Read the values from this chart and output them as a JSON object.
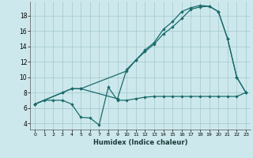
{
  "xlabel": "Humidex (Indice chaleur)",
  "bg_color": "#cde8ec",
  "grid_color": "#a8cdd2",
  "line_color": "#1a6b6b",
  "xlim": [
    -0.5,
    23.5
  ],
  "ylim": [
    3.2,
    19.8
  ],
  "xticks": [
    0,
    1,
    2,
    3,
    4,
    5,
    6,
    7,
    8,
    9,
    10,
    11,
    12,
    13,
    14,
    15,
    16,
    17,
    18,
    19,
    20,
    21,
    22,
    23
  ],
  "yticks": [
    4,
    6,
    8,
    10,
    12,
    14,
    16,
    18
  ],
  "line1_x": [
    0,
    1,
    2,
    3,
    4,
    5,
    6,
    7,
    8,
    9,
    10,
    11,
    12,
    13,
    14,
    15,
    16,
    17,
    18,
    19,
    20,
    21,
    22,
    23
  ],
  "line1_y": [
    6.5,
    7.0,
    7.0,
    7.0,
    6.5,
    4.8,
    4.7,
    3.8,
    8.7,
    7.0,
    7.0,
    7.2,
    7.4,
    7.5,
    7.5,
    7.5,
    7.5,
    7.5,
    7.5,
    7.5,
    7.5,
    7.5,
    7.5,
    8.0
  ],
  "line2_x": [
    0,
    3,
    4,
    5,
    10,
    11,
    12,
    13,
    14,
    15,
    16,
    17,
    18,
    19,
    20,
    21,
    22,
    23
  ],
  "line2_y": [
    6.5,
    8.0,
    8.5,
    8.5,
    10.8,
    12.2,
    13.3,
    14.3,
    15.6,
    16.5,
    17.6,
    18.8,
    19.1,
    19.2,
    18.5,
    15.0,
    10.0,
    8.0
  ],
  "line3_x": [
    0,
    3,
    4,
    5,
    9,
    10,
    11,
    12,
    13,
    14,
    15,
    16,
    17,
    18,
    19,
    20,
    21,
    22,
    23
  ],
  "line3_y": [
    6.5,
    8.0,
    8.5,
    8.5,
    7.2,
    11.0,
    12.2,
    13.5,
    14.5,
    16.2,
    17.2,
    18.5,
    19.0,
    19.3,
    19.2,
    18.5,
    15.0,
    10.0,
    8.0
  ]
}
